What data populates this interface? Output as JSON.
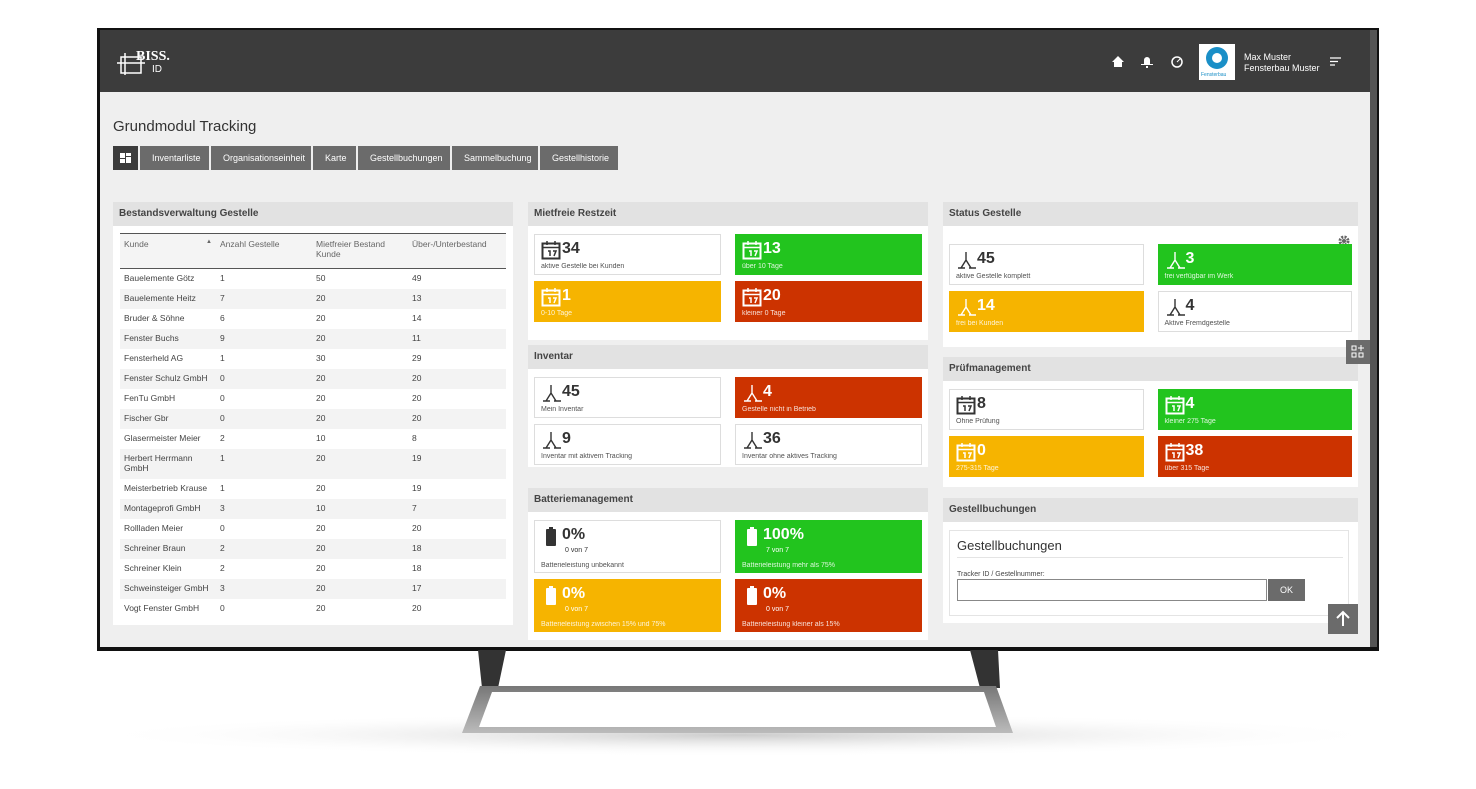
{
  "header": {
    "logo": "BISS.",
    "logo_sub": "ID",
    "avatar_label": "Fensterbau",
    "user_name": "Max Muster",
    "user_company": "Fensterbau Muster"
  },
  "page_title": "Grundmodul Tracking",
  "tabs": [
    "Inventarliste",
    "Organisationseinheit",
    "Karte",
    "Gestellbuchungen",
    "Sammelbuchung",
    "Gestellhistorie"
  ],
  "bestand": {
    "title": "Bestandsverwaltung Gestelle",
    "columns": [
      "Kunde",
      "Anzahl Gestelle",
      "Mietfreier Bestand Kunde",
      "Über-/Unterbestand"
    ],
    "rows": [
      [
        "Bauelemente Götz",
        1,
        50,
        49
      ],
      [
        "Bauelemente Heitz",
        7,
        20,
        13
      ],
      [
        "Bruder & Söhne",
        6,
        20,
        14
      ],
      [
        "Fenster Buchs",
        9,
        20,
        11
      ],
      [
        "Fensterheld AG",
        1,
        30,
        29
      ],
      [
        "Fenster Schulz GmbH",
        0,
        20,
        20
      ],
      [
        "FenTu GmbH",
        0,
        20,
        20
      ],
      [
        "Fischer Gbr",
        0,
        20,
        20
      ],
      [
        "Glasermeister Meier",
        2,
        10,
        8
      ],
      [
        "Herbert Herrmann GmbH",
        1,
        20,
        19
      ],
      [
        "Meisterbetrieb Krause",
        1,
        20,
        19
      ],
      [
        "Montageprofi GmbH",
        3,
        10,
        7
      ],
      [
        "Rollladen Meier",
        0,
        20,
        20
      ],
      [
        "Schreiner Braun",
        2,
        20,
        18
      ],
      [
        "Schreiner Klein",
        2,
        20,
        18
      ],
      [
        "Schweinsteiger GmbH",
        3,
        20,
        17
      ],
      [
        "Vogt Fenster GmbH",
        0,
        20,
        20
      ]
    ]
  },
  "mietfrei": {
    "title": "Mietfreie Restzeit",
    "tiles": [
      {
        "value": 34,
        "label": "aktive Gestelle bei Kunden",
        "color": "white"
      },
      {
        "value": 13,
        "label": "über 10 Tage",
        "color": "green"
      },
      {
        "value": 1,
        "label": "0-10 Tage",
        "color": "yellow"
      },
      {
        "value": 20,
        "label": "kleiner 0 Tage",
        "color": "red"
      }
    ]
  },
  "inventar": {
    "title": "Inventar",
    "tiles": [
      {
        "value": 45,
        "label": "Mein Inventar",
        "color": "white"
      },
      {
        "value": 4,
        "label": "Gestelle nicht in Betrieb",
        "color": "red"
      },
      {
        "value": 9,
        "label": "Inventar mit aktivem Tracking",
        "color": "white"
      },
      {
        "value": 36,
        "label": "Inventar ohne aktives Tracking",
        "color": "white"
      }
    ]
  },
  "batterie": {
    "title": "Batteriemanagement",
    "tiles": [
      {
        "value": "0%",
        "sub": "0 von 7",
        "label": "Batterieleistung unbekannt",
        "color": "white"
      },
      {
        "value": "100%",
        "sub": "7 von 7",
        "label": "Batterieleistung mehr als 75%",
        "color": "green"
      },
      {
        "value": "0%",
        "sub": "0 von 7",
        "label": "Batterieleistung zwischen 15% und 75%",
        "color": "yellow"
      },
      {
        "value": "0%",
        "sub": "0 von 7",
        "label": "Batterieleistung kleiner als 15%",
        "color": "red"
      }
    ]
  },
  "status": {
    "title": "Status Gestelle",
    "tiles": [
      {
        "value": 45,
        "label": "aktive Gestelle komplett",
        "color": "white"
      },
      {
        "value": 3,
        "label": "frei verfügbar im Werk",
        "color": "green"
      },
      {
        "value": 14,
        "label": "frei bei Kunden",
        "color": "yellow"
      },
      {
        "value": 4,
        "label": "Aktive Fremdgestelle",
        "color": "white"
      }
    ]
  },
  "pruef": {
    "title": "Prüfmanagement",
    "tiles": [
      {
        "value": 8,
        "label": "Ohne Prüfung",
        "color": "white"
      },
      {
        "value": 4,
        "label": "kleiner 275 Tage",
        "color": "green"
      },
      {
        "value": 0,
        "label": "275-315 Tage",
        "color": "yellow"
      },
      {
        "value": 38,
        "label": "über 315 Tage",
        "color": "red"
      }
    ]
  },
  "buchung": {
    "title": "Gestellbuchungen",
    "heading": "Gestellbuchungen",
    "field_label": "Tracker ID / Gestellnummer:",
    "button": "OK"
  }
}
